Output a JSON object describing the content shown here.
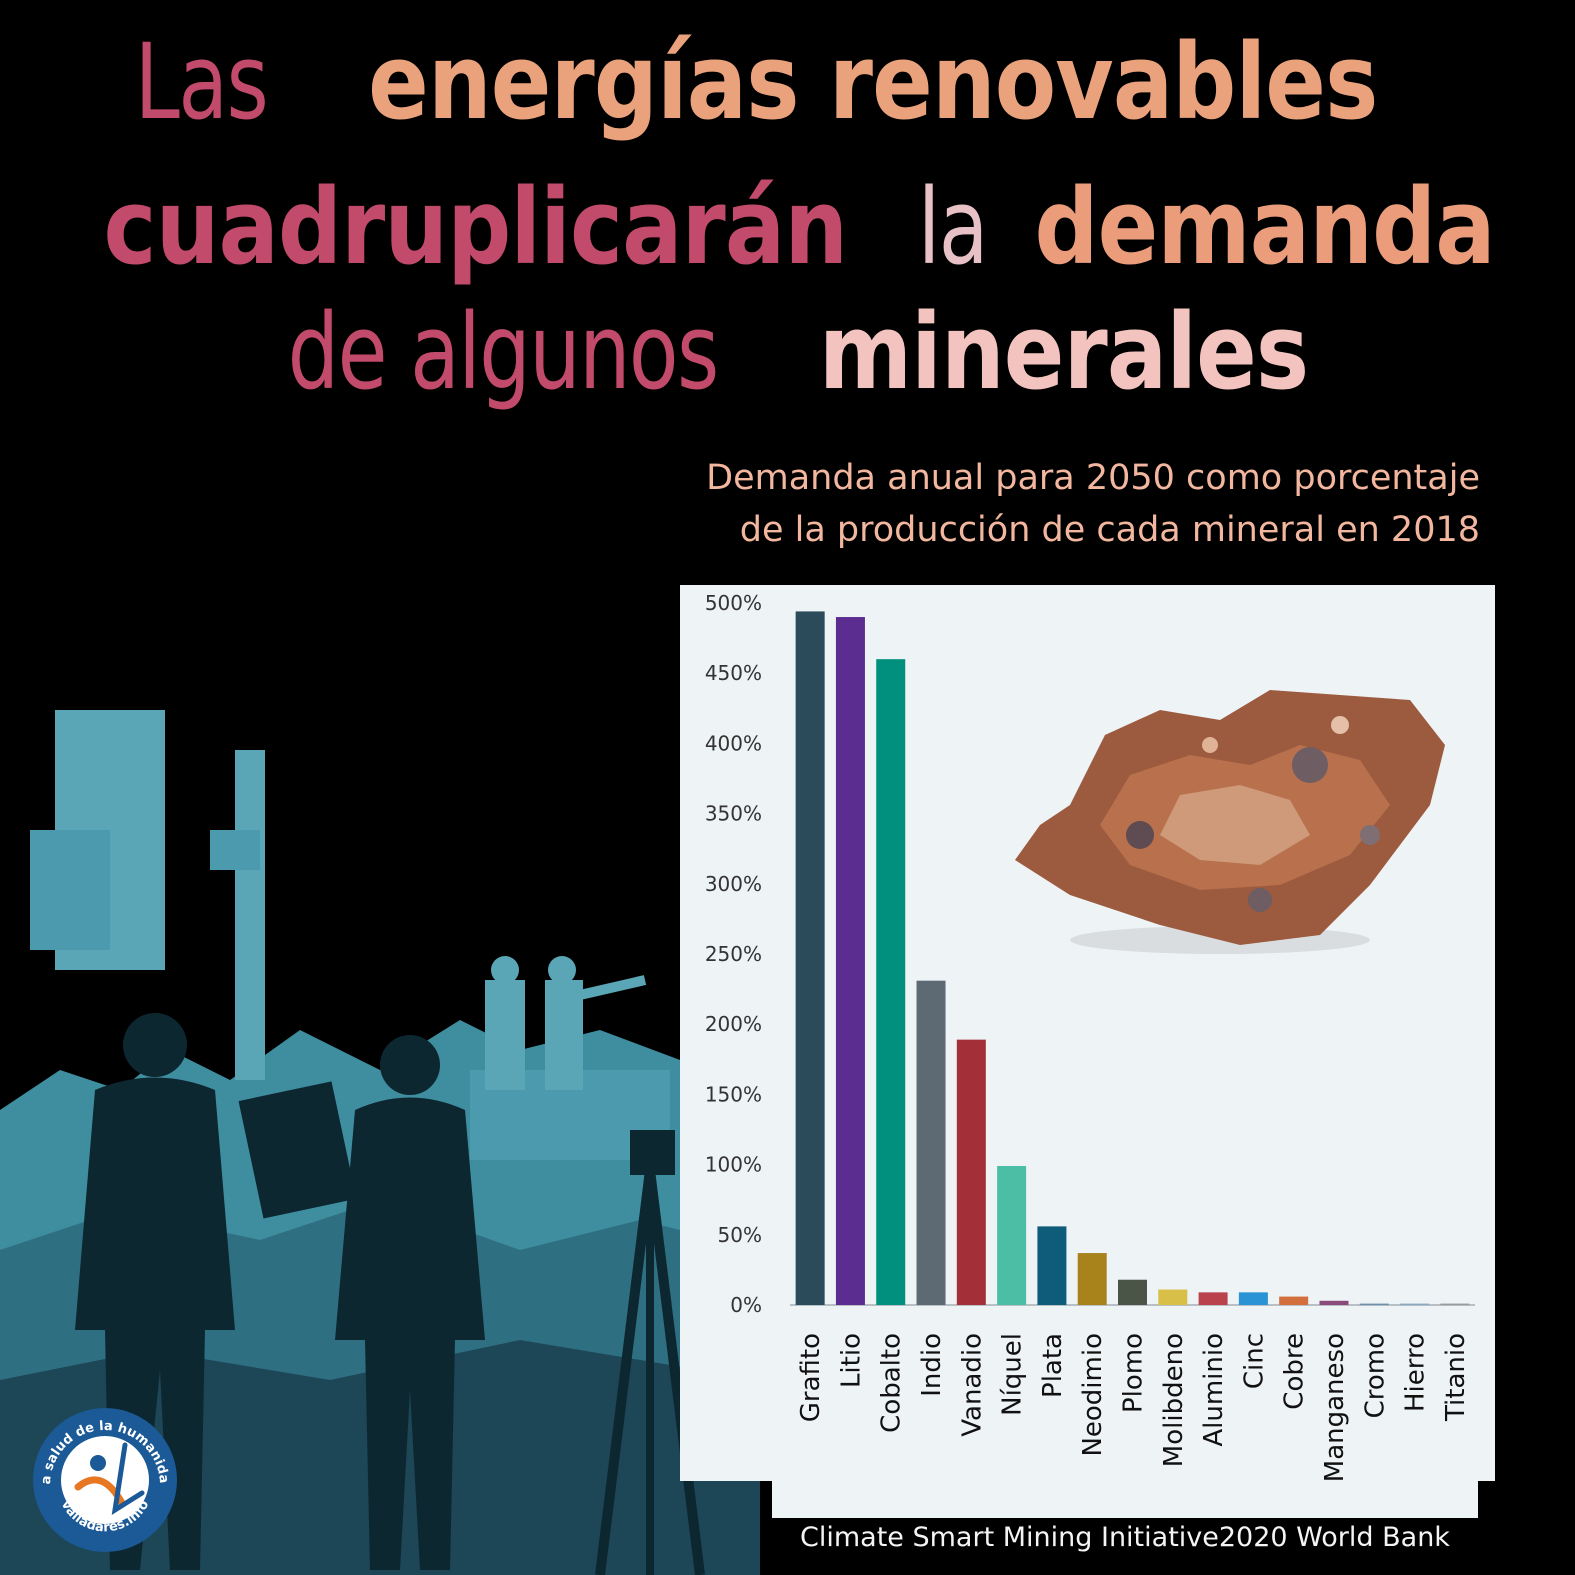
{
  "title": {
    "line1": [
      {
        "text": "Las ",
        "style": "thin",
        "color": "#c24a6b"
      },
      {
        "text": "energías renovables",
        "style": "bold",
        "color": "#eaa27c"
      }
    ],
    "line2": [
      {
        "text": "cuadruplicarán",
        "style": "bold",
        "color": "#c24a6b"
      },
      {
        "text": " la ",
        "style": "thin",
        "color": "#e8c1c7"
      },
      {
        "text": "demanda",
        "style": "bold",
        "color": "#ea9c7b"
      }
    ],
    "line3": [
      {
        "text": "de algunos ",
        "style": "thin",
        "color": "#c24a6b"
      },
      {
        "text": "minerales",
        "style": "bold",
        "color": "#f3c4bf"
      }
    ]
  },
  "subtitle": {
    "line1": "Demanda anual para 2050 como porcentaje",
    "line2": "de la producción de cada mineral en 2018"
  },
  "source": "Climate Smart Mining Initiative2020 World Bank",
  "logo": {
    "ring_text": "La salud de la humanidad",
    "url_text": "valladares.info"
  },
  "colors": {
    "background": "#000000",
    "panel": "#eef3f6",
    "silhouette_dark": "#1d4656",
    "silhouette_light": "#3f8ea0"
  },
  "chart_data": {
    "type": "bar",
    "ylim": [
      0,
      500
    ],
    "yticks": [
      "0%",
      "50%",
      "100%",
      "150%",
      "200%",
      "250%",
      "300%",
      "350%",
      "400%",
      "450%",
      "500%"
    ],
    "categories": [
      "Grafito",
      "Litio",
      "Cobalto",
      "Indio",
      "Vanadio",
      "Níquel",
      "Plata",
      "Neodimio",
      "Plomo",
      "Molibdeno",
      "Aluminio",
      "Cinc",
      "Cobre",
      "Manganeso",
      "Cromo",
      "Hierro",
      "Titanio"
    ],
    "values": [
      494,
      490,
      460,
      231,
      189,
      99,
      56,
      37,
      18,
      11,
      9,
      9,
      6,
      3,
      1,
      1,
      1
    ],
    "bar_colors": [
      "#2b4a5a",
      "#5c2d91",
      "#00907d",
      "#5d6a73",
      "#a33038",
      "#4dbea6",
      "#0f5c7a",
      "#a8831c",
      "#4b5547",
      "#d8bf47",
      "#b9424d",
      "#2a93d5",
      "#d26f3c",
      "#8a4a7a",
      "#6d8ea8",
      "#8aaabf",
      "#9a9a9a"
    ]
  }
}
